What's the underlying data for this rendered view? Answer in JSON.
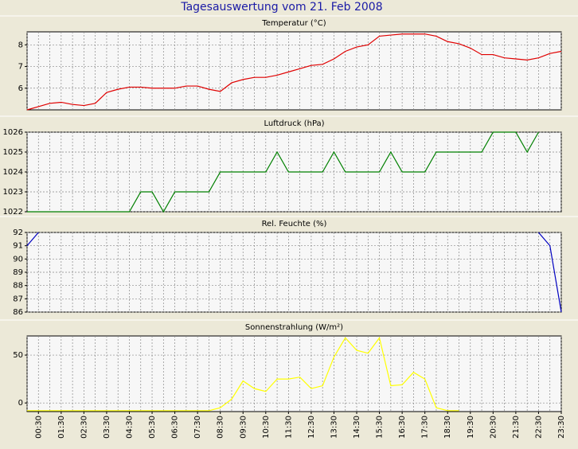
{
  "title": "Tagesauswertung vom 21. Feb 2008",
  "x": [
    0,
    0.5,
    1,
    1.5,
    2,
    2.5,
    3,
    3.5,
    4,
    4.5,
    5,
    5.5,
    6,
    6.5,
    7,
    7.5,
    8,
    8.5,
    9,
    9.5,
    10,
    10.5,
    11,
    11.5,
    12,
    12.5,
    13,
    13.5,
    14,
    14.5,
    15,
    15.5,
    16,
    16.5,
    17,
    17.5,
    18,
    18.5,
    19,
    19.5,
    20,
    20.5,
    21,
    21.5,
    22,
    22.5,
    23,
    23.5
  ],
  "xlim": [
    0,
    23.5
  ],
  "xticks": [
    {
      "value": 0.5,
      "label": "00:30"
    },
    {
      "value": 1.5,
      "label": "01:30"
    },
    {
      "value": 2.5,
      "label": "02:30"
    },
    {
      "value": 3.5,
      "label": "03:30"
    },
    {
      "value": 4.5,
      "label": "04:30"
    },
    {
      "value": 5.5,
      "label": "05:30"
    },
    {
      "value": 6.5,
      "label": "06:30"
    },
    {
      "value": 7.5,
      "label": "07:30"
    },
    {
      "value": 8.5,
      "label": "08:30"
    },
    {
      "value": 9.5,
      "label": "09:30"
    },
    {
      "value": 10.5,
      "label": "10:30"
    },
    {
      "value": 11.5,
      "label": "11:30"
    },
    {
      "value": 12.5,
      "label": "12:30"
    },
    {
      "value": 13.5,
      "label": "13:30"
    },
    {
      "value": 14.5,
      "label": "14:30"
    },
    {
      "value": 15.5,
      "label": "15:30"
    },
    {
      "value": 16.5,
      "label": "16:30"
    },
    {
      "value": 17.5,
      "label": "17:30"
    },
    {
      "value": 18.5,
      "label": "18:30"
    },
    {
      "value": 19.5,
      "label": "19:30"
    },
    {
      "value": 20.5,
      "label": "20:30"
    },
    {
      "value": 21.5,
      "label": "21:30"
    },
    {
      "value": 22.5,
      "label": "22:30"
    },
    {
      "value": 23.5,
      "label": "23:30"
    }
  ],
  "chart_data": [
    {
      "type": "line",
      "title": "Temperatur (°C)",
      "color": "#e00000",
      "ylim": [
        5,
        8.6
      ],
      "yticks": [
        6,
        7,
        8
      ],
      "grid": true,
      "values": [
        5.0,
        5.15,
        5.3,
        5.35,
        5.25,
        5.2,
        5.3,
        5.8,
        5.95,
        6.05,
        6.05,
        6.0,
        6.0,
        6.0,
        6.1,
        6.1,
        5.95,
        5.85,
        6.25,
        6.4,
        6.5,
        6.5,
        6.6,
        6.75,
        6.9,
        7.05,
        7.1,
        7.35,
        7.7,
        7.9,
        8.0,
        8.4,
        8.45,
        8.5,
        8.5,
        8.5,
        8.4,
        8.15,
        8.05,
        7.85,
        7.55,
        7.55,
        7.4,
        7.35,
        7.3,
        7.4,
        7.6,
        7.7
      ]
    },
    {
      "type": "line",
      "title": "Luftdruck (hPa)",
      "color": "#008000",
      "ylim": [
        1022,
        1026
      ],
      "yticks": [
        1022,
        1023,
        1024,
        1025,
        1026
      ],
      "grid": true,
      "values": [
        1022,
        1022,
        1022,
        1022,
        1022,
        1022,
        1022,
        1022,
        1022,
        1022,
        1023,
        1023,
        1022,
        1023,
        1023,
        1023,
        1023,
        1024,
        1024,
        1024,
        1024,
        1024,
        1025,
        1024,
        1024,
        1024,
        1024,
        1025,
        1024,
        1024,
        1024,
        1024,
        1025,
        1024,
        1024,
        1024,
        1025,
        1025,
        1025,
        1025,
        1025,
        1026,
        1026,
        1026,
        1025,
        1026,
        null,
        null
      ]
    },
    {
      "type": "line",
      "title": "Rel. Feuchte (%)",
      "color": "#0000c0",
      "ylim": [
        86,
        92
      ],
      "yticks": [
        86,
        87,
        88,
        89,
        90,
        91,
        92
      ],
      "grid": true,
      "values": [
        91,
        92,
        null,
        null,
        null,
        null,
        null,
        null,
        null,
        null,
        null,
        null,
        null,
        null,
        null,
        null,
        null,
        null,
        null,
        null,
        null,
        null,
        null,
        null,
        null,
        null,
        null,
        null,
        null,
        null,
        null,
        null,
        null,
        null,
        null,
        null,
        null,
        null,
        null,
        null,
        null,
        null,
        null,
        null,
        null,
        92,
        91,
        86
      ]
    },
    {
      "type": "line",
      "title": "Sonnenstrahlung (W/m²)",
      "color": "#ffff00",
      "ylim": [
        -9,
        70
      ],
      "yticks": [
        0,
        50
      ],
      "grid": true,
      "values": [
        -8,
        -8,
        -8,
        -8,
        -8,
        -8,
        -8,
        -8,
        -8,
        -8,
        -8,
        -8,
        -8,
        -8,
        -8,
        -8,
        -8,
        -5,
        4,
        23,
        15,
        12,
        25,
        25,
        27,
        15,
        18,
        48,
        68,
        55,
        52,
        68,
        18,
        19,
        32,
        25,
        -5,
        -8,
        -8,
        null,
        null,
        null,
        null,
        null,
        null,
        null,
        null,
        null
      ]
    }
  ]
}
